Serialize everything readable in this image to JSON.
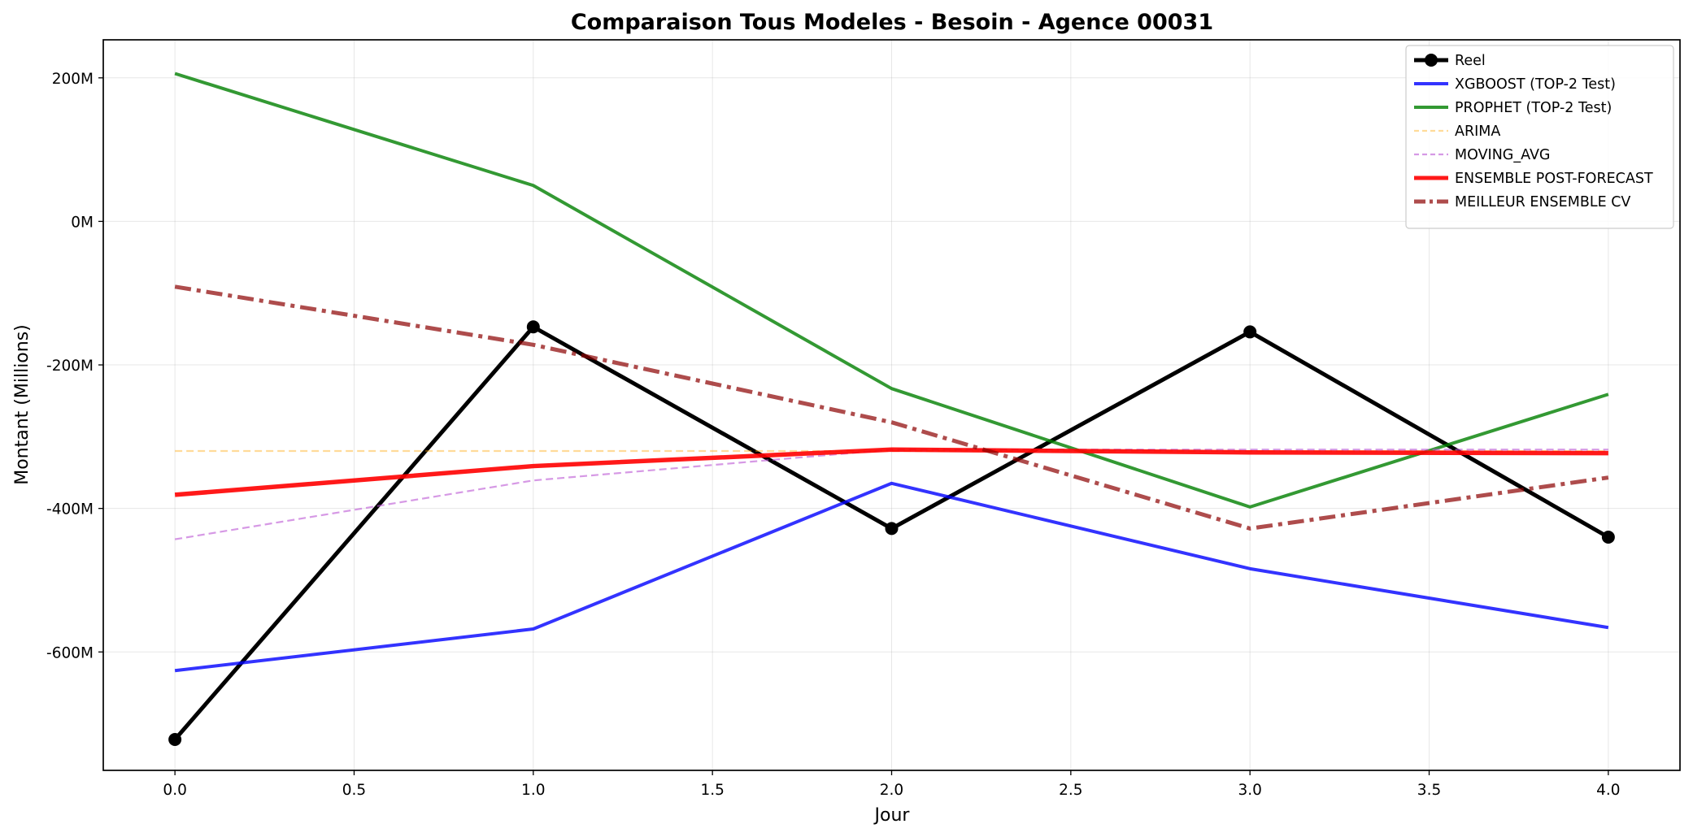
{
  "chart_data": {
    "type": "line",
    "title": "Comparaison Tous Modeles - Besoin - Agence 00031",
    "xlabel": "Jour",
    "ylabel": "Montant (Millions)",
    "x": [
      0,
      1,
      2,
      3,
      4
    ],
    "xlim": [
      -0.2,
      4.2
    ],
    "ylim": [
      -765,
      253
    ],
    "xticks": [
      0.0,
      0.5,
      1.0,
      1.5,
      2.0,
      2.5,
      3.0,
      3.5,
      4.0
    ],
    "xtick_labels": [
      "0.0",
      "0.5",
      "1.0",
      "1.5",
      "2.0",
      "2.5",
      "3.0",
      "3.5",
      "4.0"
    ],
    "yticks": [
      200,
      0,
      -200,
      -400,
      -600
    ],
    "ytick_labels": [
      "200M",
      "0M",
      "-200M",
      "-400M",
      "-600M"
    ],
    "grid": true,
    "legend_position": "top-right",
    "series": [
      {
        "name": "Reel",
        "values": [
          -722,
          -147,
          -428,
          -154,
          -440
        ],
        "color": "#000000",
        "dash": "solid",
        "width": 5,
        "markers": true,
        "opacity": 1
      },
      {
        "name": "XGBOOST (TOP-2 Test)",
        "values": [
          -626,
          -568,
          -365,
          -484,
          -566
        ],
        "color": "#0000ff",
        "dash": "solid",
        "width": 4,
        "markers": false,
        "opacity": 0.8
      },
      {
        "name": "PROPHET (TOP-2 Test)",
        "values": [
          206,
          50,
          -233,
          -398,
          -241
        ],
        "color": "#008000",
        "dash": "solid",
        "width": 4,
        "markers": false,
        "opacity": 0.8
      },
      {
        "name": "ARIMA",
        "values": [
          -320,
          -320,
          -320,
          -320,
          -320
        ],
        "color": "#ffa500",
        "dash": "dashed",
        "width": 2.2,
        "markers": false,
        "opacity": 0.4
      },
      {
        "name": "MOVING_AVG",
        "values": [
          -443,
          -361,
          -318,
          -318,
          -318
        ],
        "color": "#ba55d3",
        "dash": "dashed",
        "width": 2.2,
        "markers": false,
        "opacity": 0.6
      },
      {
        "name": "ENSEMBLE POST-FORECAST",
        "values": [
          -381,
          -341,
          -318,
          -322,
          -323
        ],
        "color": "#ff0000",
        "dash": "solid",
        "width": 5.5,
        "markers": false,
        "opacity": 0.9
      },
      {
        "name": "MEILLEUR ENSEMBLE CV",
        "values": [
          -91,
          -172,
          -280,
          -428,
          -357
        ],
        "color": "#8b0000",
        "dash": "dashdot",
        "width": 5,
        "markers": false,
        "opacity": 0.7
      }
    ]
  }
}
